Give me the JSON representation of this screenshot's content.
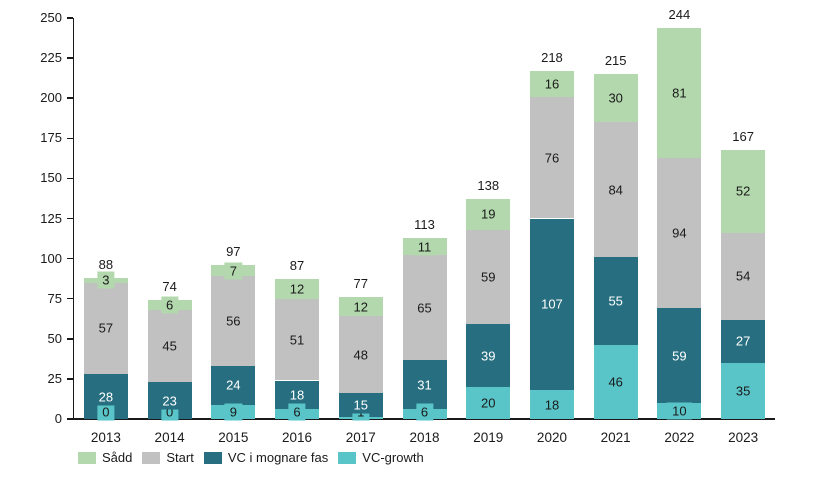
{
  "chart_data": {
    "type": "bar",
    "stacked": true,
    "title": "",
    "xlabel": "",
    "ylabel": "",
    "categories": [
      "2013",
      "2014",
      "2015",
      "2016",
      "2017",
      "2018",
      "2019",
      "2020",
      "2021",
      "2022",
      "2023"
    ],
    "series": [
      {
        "name": "Sådd",
        "color": "#b3d8ad",
        "label_color": "#1a1a1a",
        "values": [
          3,
          6,
          7,
          12,
          12,
          11,
          19,
          16,
          30,
          81,
          52
        ]
      },
      {
        "name": "Start",
        "color": "#c1c1c1",
        "label_color": "#1a1a1a",
        "values": [
          57,
          45,
          56,
          51,
          48,
          65,
          59,
          76,
          84,
          94,
          54
        ]
      },
      {
        "name": "VC i mognare fas",
        "color": "#276f80",
        "label_color": "#ffffff",
        "values": [
          28,
          23,
          24,
          18,
          15,
          31,
          39,
          107,
          55,
          59,
          27
        ]
      },
      {
        "name": "VC-growth",
        "color": "#5ac5c9",
        "label_color": "#1a1a1a",
        "values": [
          0,
          0,
          9,
          6,
          1,
          6,
          20,
          18,
          46,
          10,
          35
        ]
      }
    ],
    "stack_order_bottom_to_top": [
      "VC-growth",
      "VC i mognare fas",
      "Start",
      "Sådd"
    ],
    "totals": [
      "88",
      "74",
      "97",
      "87",
      "77",
      "113",
      "138",
      "218",
      "215",
      "244",
      "167"
    ],
    "ylim": [
      0,
      250
    ],
    "ytick_step": 25,
    "grid": false,
    "legend_position": "bottom-left",
    "axis_color": "#1a1a1a",
    "text_color": "#1a1a1a",
    "background_color": "#ffffff"
  }
}
